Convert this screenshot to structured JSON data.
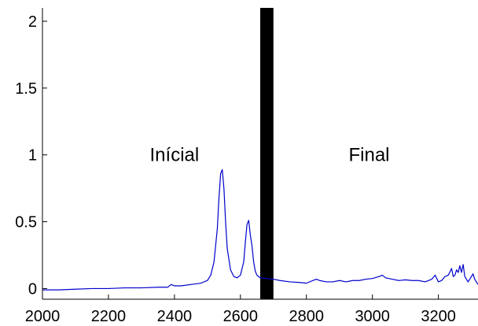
{
  "chart_data": {
    "type": "line",
    "title": "",
    "xlabel": "",
    "ylabel": "",
    "xlim": [
      2000,
      3320
    ],
    "ylim": [
      -0.08,
      2.1
    ],
    "grid": false,
    "line_color": "#0000cc",
    "band_color": "#000000",
    "x_ticks": [
      2000,
      2200,
      2400,
      2600,
      2800,
      3000,
      3200
    ],
    "x_tick_labels": [
      "2000",
      "2200",
      "2400",
      "2600",
      "2800",
      "3000",
      "3200"
    ],
    "y_ticks": [
      0,
      0.5,
      1,
      1.5,
      2
    ],
    "y_tick_labels": [
      "0",
      "0.5",
      "1",
      "1.5",
      "2"
    ],
    "band": {
      "x_start": 2660,
      "x_end": 2700
    },
    "annotations": [
      {
        "text": "Inícial",
        "x": 2400,
        "y": 1.0
      },
      {
        "text": "Final",
        "x": 2990,
        "y": 1.0
      }
    ],
    "series": [
      {
        "x": [
          2000,
          2050,
          2100,
          2150,
          2200,
          2250,
          2300,
          2350,
          2380,
          2390,
          2400,
          2420,
          2450,
          2480,
          2500,
          2510,
          2520,
          2530,
          2535,
          2540,
          2545,
          2550,
          2555,
          2560,
          2570,
          2580,
          2590,
          2600,
          2610,
          2615,
          2620,
          2625,
          2630,
          2635,
          2640,
          2645,
          2650,
          2655,
          2660,
          2700,
          2720,
          2750,
          2780,
          2800,
          2820,
          2830,
          2840,
          2860,
          2880,
          2900,
          2920,
          2940,
          2960,
          2980,
          3000,
          3020,
          3030,
          3040,
          3060,
          3080,
          3100,
          3120,
          3140,
          3160,
          3180,
          3190,
          3200,
          3210,
          3220,
          3230,
          3240,
          3245,
          3250,
          3255,
          3260,
          3265,
          3270,
          3275,
          3280,
          3290,
          3300,
          3305,
          3310,
          3320
        ],
        "y": [
          -0.01,
          -0.01,
          -0.005,
          0.0,
          0.0,
          0.005,
          0.005,
          0.01,
          0.01,
          0.03,
          0.02,
          0.02,
          0.03,
          0.04,
          0.06,
          0.1,
          0.2,
          0.45,
          0.68,
          0.86,
          0.89,
          0.75,
          0.5,
          0.3,
          0.14,
          0.09,
          0.08,
          0.1,
          0.2,
          0.35,
          0.48,
          0.51,
          0.4,
          0.32,
          0.2,
          0.13,
          0.1,
          0.09,
          0.08,
          0.07,
          0.06,
          0.05,
          0.045,
          0.04,
          0.06,
          0.07,
          0.06,
          0.05,
          0.05,
          0.06,
          0.05,
          0.06,
          0.06,
          0.07,
          0.075,
          0.09,
          0.1,
          0.08,
          0.07,
          0.06,
          0.065,
          0.06,
          0.06,
          0.05,
          0.07,
          0.1,
          0.05,
          0.06,
          0.09,
          0.1,
          0.15,
          0.09,
          0.1,
          0.14,
          0.12,
          0.17,
          0.12,
          0.18,
          0.09,
          0.05,
          0.09,
          0.11,
          0.07,
          0.03
        ]
      }
    ]
  }
}
